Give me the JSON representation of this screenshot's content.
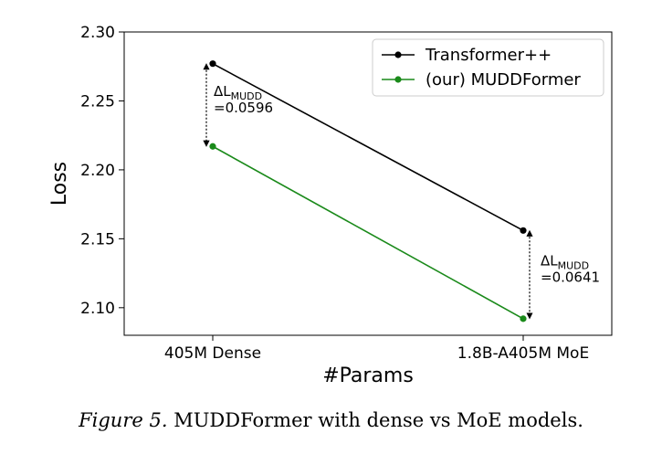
{
  "caption": {
    "label": "Figure 5.",
    "text": "MUDDFormer with dense vs MoE models."
  },
  "chart_data": {
    "type": "line",
    "title": "",
    "xlabel": "#Params",
    "ylabel": "Loss",
    "categories": [
      "405M Dense",
      "1.8B-A405M MoE"
    ],
    "ylim": [
      2.08,
      2.3
    ],
    "yticks": [
      "2.10",
      "2.15",
      "2.20",
      "2.25",
      "2.30"
    ],
    "grid": false,
    "legend_position": "top-right",
    "series": [
      {
        "name": "Transformer++",
        "color": "#000000",
        "values": [
          2.277,
          2.156
        ]
      },
      {
        "name": "(our) MUDDFormer",
        "color": "#1a8a1a",
        "values": [
          2.217,
          2.092
        ]
      }
    ],
    "annotations": [
      {
        "category_index": 0,
        "delta_prefix": "ΔL",
        "delta_subscript": "MUDD",
        "value_text": "=0.0596"
      },
      {
        "category_index": 1,
        "delta_prefix": "ΔL",
        "delta_subscript": "MUDD",
        "value_text": "=0.0641"
      }
    ]
  }
}
